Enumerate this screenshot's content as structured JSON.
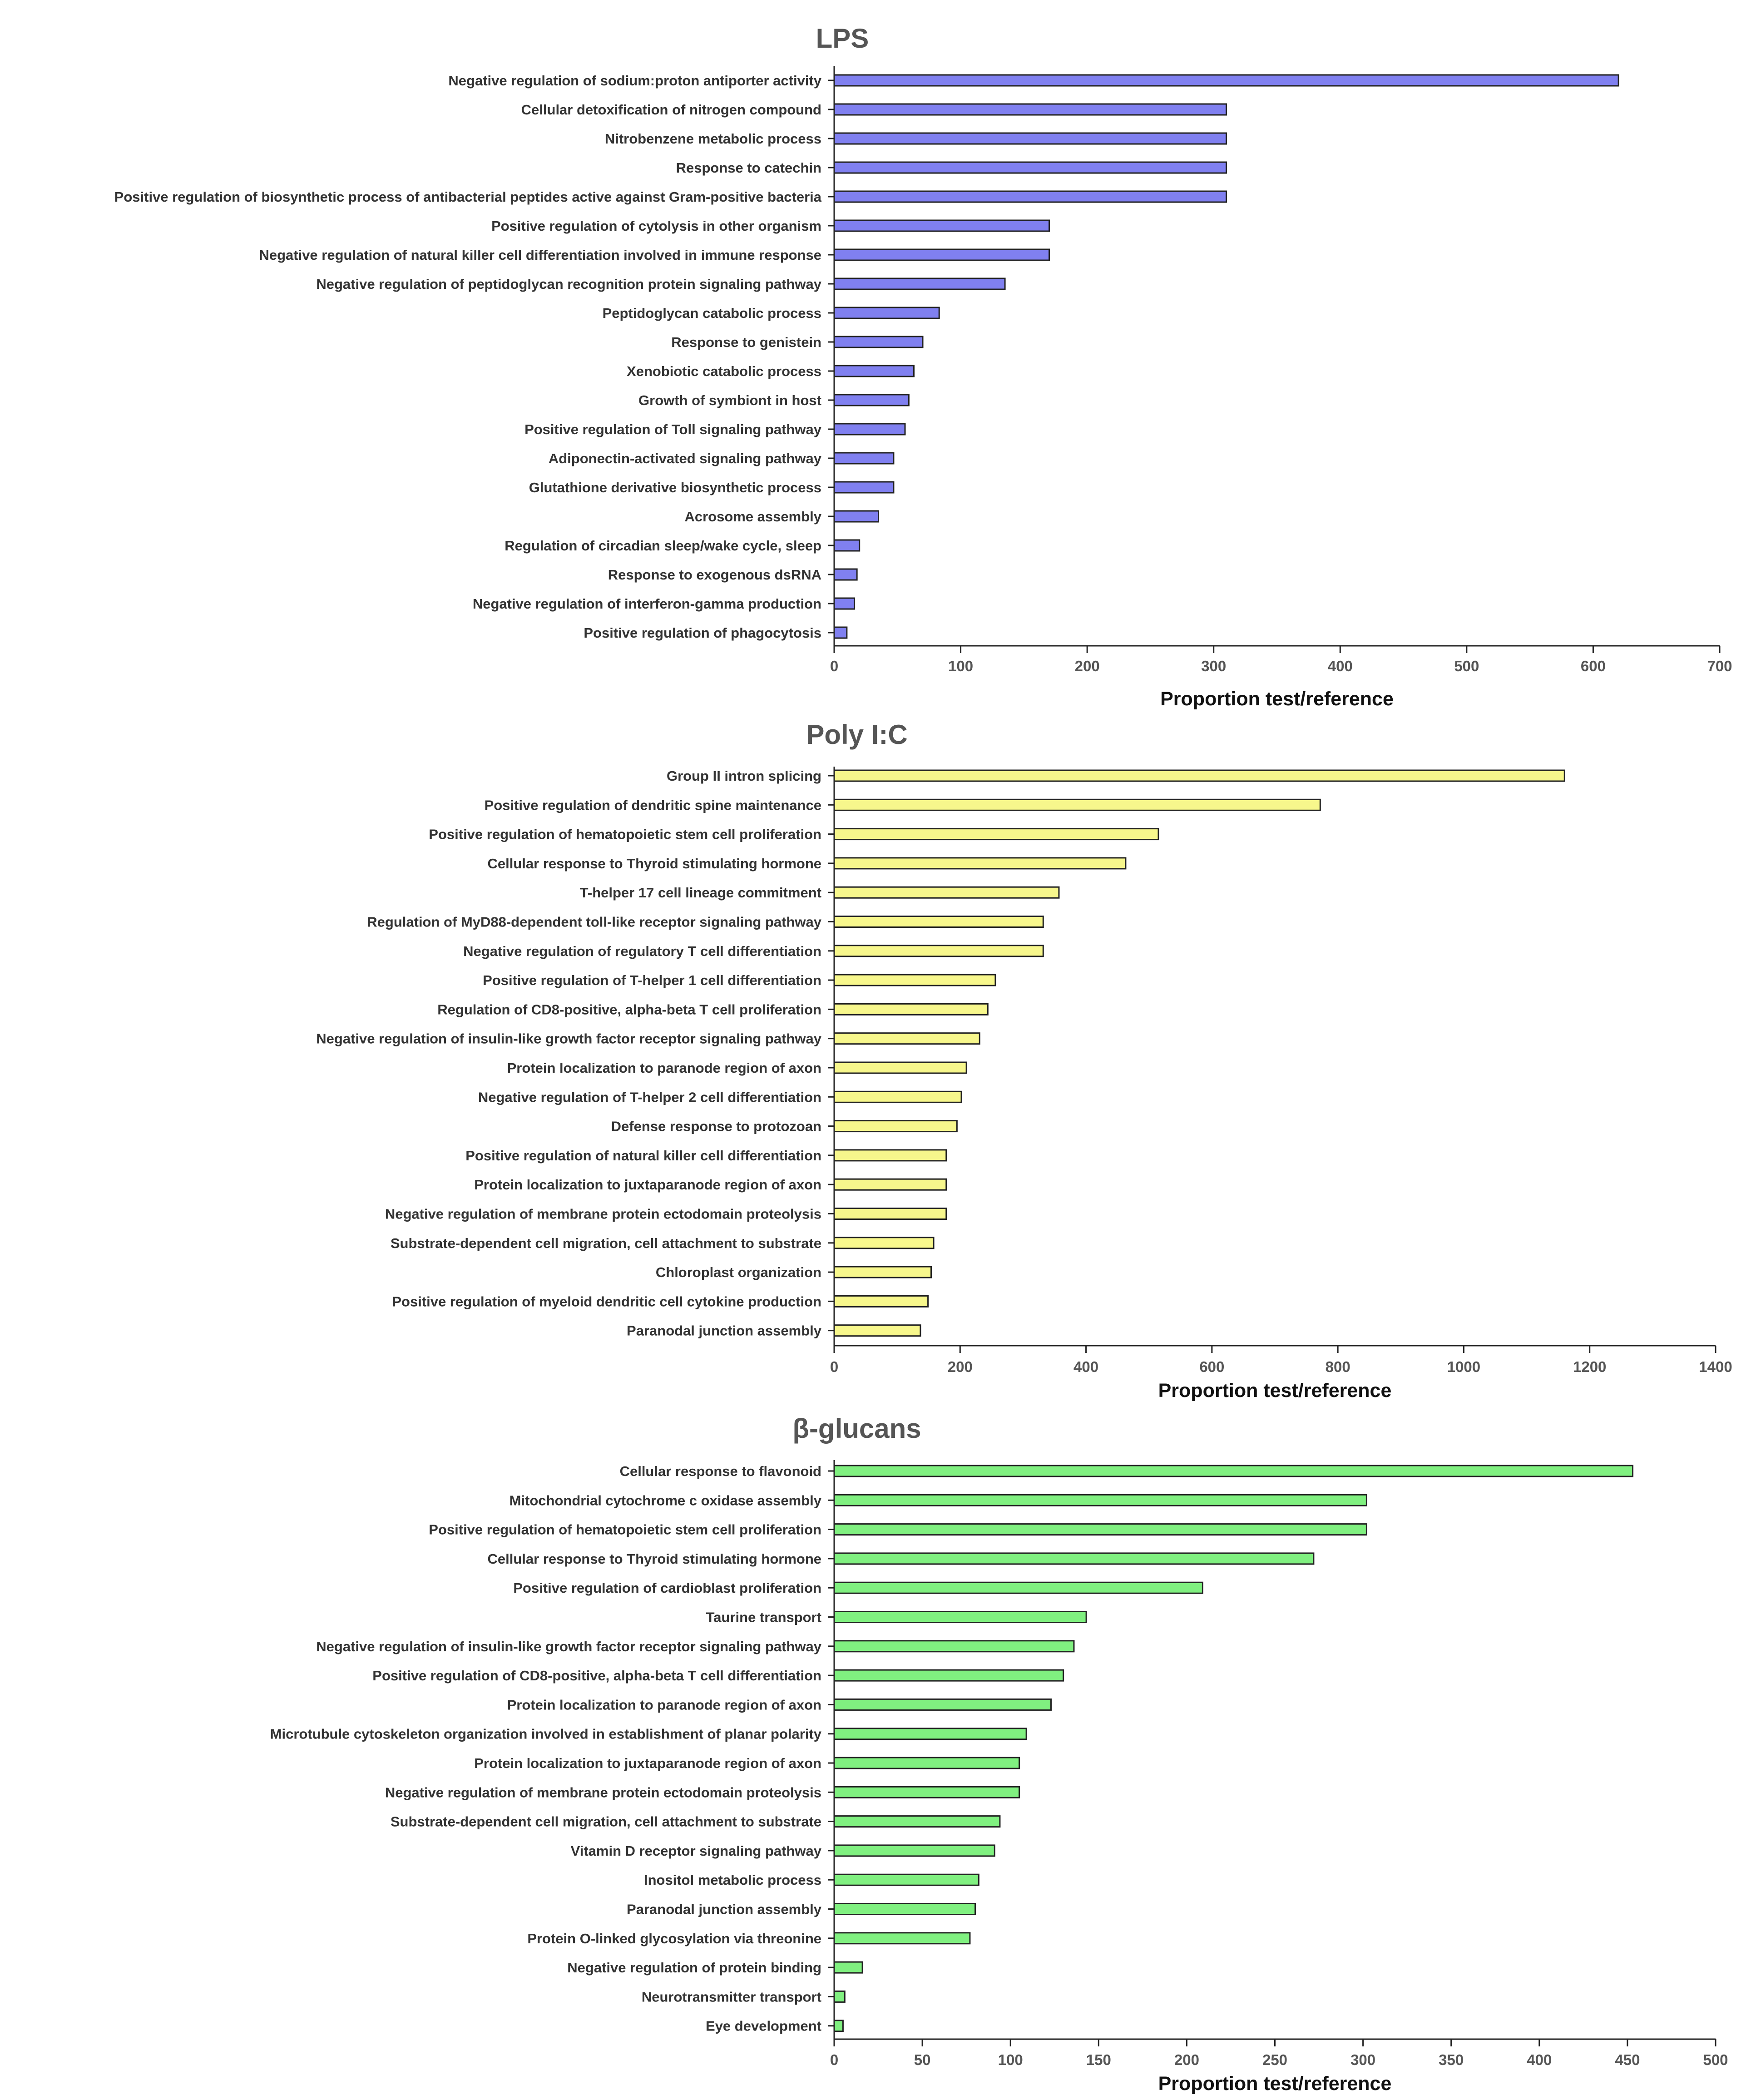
{
  "chart_data": [
    {
      "type": "bar",
      "orientation": "horizontal",
      "title": "LPS",
      "xlabel": "Proportion test/reference",
      "ylabel": "",
      "xlim": [
        0,
        700
      ],
      "ticks": [
        0,
        100,
        200,
        300,
        400,
        500,
        600,
        700
      ],
      "bar_color": "#8080f0",
      "categories": [
        "Negative regulation of sodium:proton antiporter activity",
        "Cellular detoxification of nitrogen compound",
        "Nitrobenzene metabolic process",
        "Response to catechin",
        "Positive regulation of biosynthetic process of antibacterial peptides active against Gram-positive bacteria",
        "Positive regulation of cytolysis in other organism",
        "Negative regulation of natural killer cell differentiation involved in immune response",
        "Negative regulation of peptidoglycan recognition protein signaling pathway",
        "Peptidoglycan catabolic process",
        "Response to genistein",
        "Xenobiotic catabolic process",
        "Growth of symbiont in host",
        "Positive regulation of Toll signaling pathway",
        "Adiponectin-activated signaling pathway",
        "Glutathione derivative biosynthetic process",
        "Acrosome assembly",
        "Regulation of circadian sleep/wake cycle, sleep",
        "Response to exogenous dsRNA",
        "Negative regulation of interferon-gamma production",
        "Positive regulation of phagocytosis"
      ],
      "values": [
        620,
        310,
        310,
        310,
        310,
        170,
        170,
        135,
        83,
        70,
        63,
        59,
        56,
        47,
        47,
        35,
        20,
        18,
        16,
        10
      ]
    },
    {
      "type": "bar",
      "orientation": "horizontal",
      "title": "Poly I:C",
      "xlabel": "Proportion test/reference",
      "ylabel": "",
      "xlim": [
        0,
        1400
      ],
      "ticks": [
        0,
        200,
        400,
        600,
        800,
        1000,
        1200,
        1400
      ],
      "bar_color": "#f7f78c",
      "categories": [
        "Group II intron splicing",
        "Positive regulation of dendritic spine maintenance",
        "Positive regulation of hematopoietic stem cell proliferation",
        "Cellular response to Thyroid stimulating hormone",
        "T-helper 17 cell lineage commitment",
        "Regulation of MyD88-dependent toll-like receptor signaling pathway",
        "Negative regulation of regulatory T cell differentiation",
        "Positive regulation of T-helper 1 cell differentiation",
        "Regulation of CD8-positive, alpha-beta T cell proliferation",
        "Negative regulation of insulin-like growth factor receptor signaling pathway",
        "Protein localization to paranode region of axon",
        "Negative regulation of T-helper 2 cell differentiation",
        "Defense response to protozoan",
        "Positive regulation of natural killer cell differentiation",
        "Protein localization to juxtaparanode region of axon",
        "Negative regulation of membrane protein ectodomain proteolysis",
        "Substrate-dependent cell migration, cell attachment to substrate",
        "Chloroplast organization",
        "Positive regulation of myeloid dendritic cell cytokine production",
        "Paranodal junction assembly"
      ],
      "values": [
        1160,
        772,
        515,
        463,
        357,
        332,
        332,
        256,
        244,
        231,
        210,
        202,
        195,
        178,
        178,
        178,
        158,
        154,
        149,
        137
      ]
    },
    {
      "type": "bar",
      "orientation": "horizontal",
      "title": "β-glucans",
      "xlabel": "Proportion test/reference",
      "ylabel": "",
      "xlim": [
        0,
        500
      ],
      "ticks": [
        0,
        50,
        100,
        150,
        200,
        250,
        300,
        350,
        400,
        450,
        500
      ],
      "bar_color": "#80f080",
      "categories": [
        "Cellular response to flavonoid",
        "Mitochondrial cytochrome c oxidase assembly",
        "Positive regulation of hematopoietic stem cell proliferation",
        "Cellular response to Thyroid stimulating hormone",
        "Positive regulation of cardioblast proliferation",
        "Taurine transport",
        "Negative regulation of insulin-like growth factor receptor signaling pathway",
        "Positive regulation of CD8-positive, alpha-beta T cell differentiation",
        "Protein localization to paranode region of axon",
        "Microtubule cytoskeleton organization involved in establishment of planar polarity",
        "Protein localization to juxtaparanode region of axon",
        "Negative regulation of membrane protein ectodomain proteolysis",
        "Substrate-dependent cell migration, cell attachment to substrate",
        "Vitamin D receptor signaling pathway",
        "Inositol metabolic process",
        "Paranodal junction assembly",
        "Protein O-linked glycosylation via threonine",
        "Negative regulation of protein binding",
        "Neurotransmitter transport",
        "Eye development"
      ],
      "values": [
        453,
        302,
        302,
        272,
        209,
        143,
        136,
        130,
        123,
        109,
        105,
        105,
        94,
        91,
        82,
        80,
        77,
        16,
        6,
        5
      ]
    }
  ]
}
